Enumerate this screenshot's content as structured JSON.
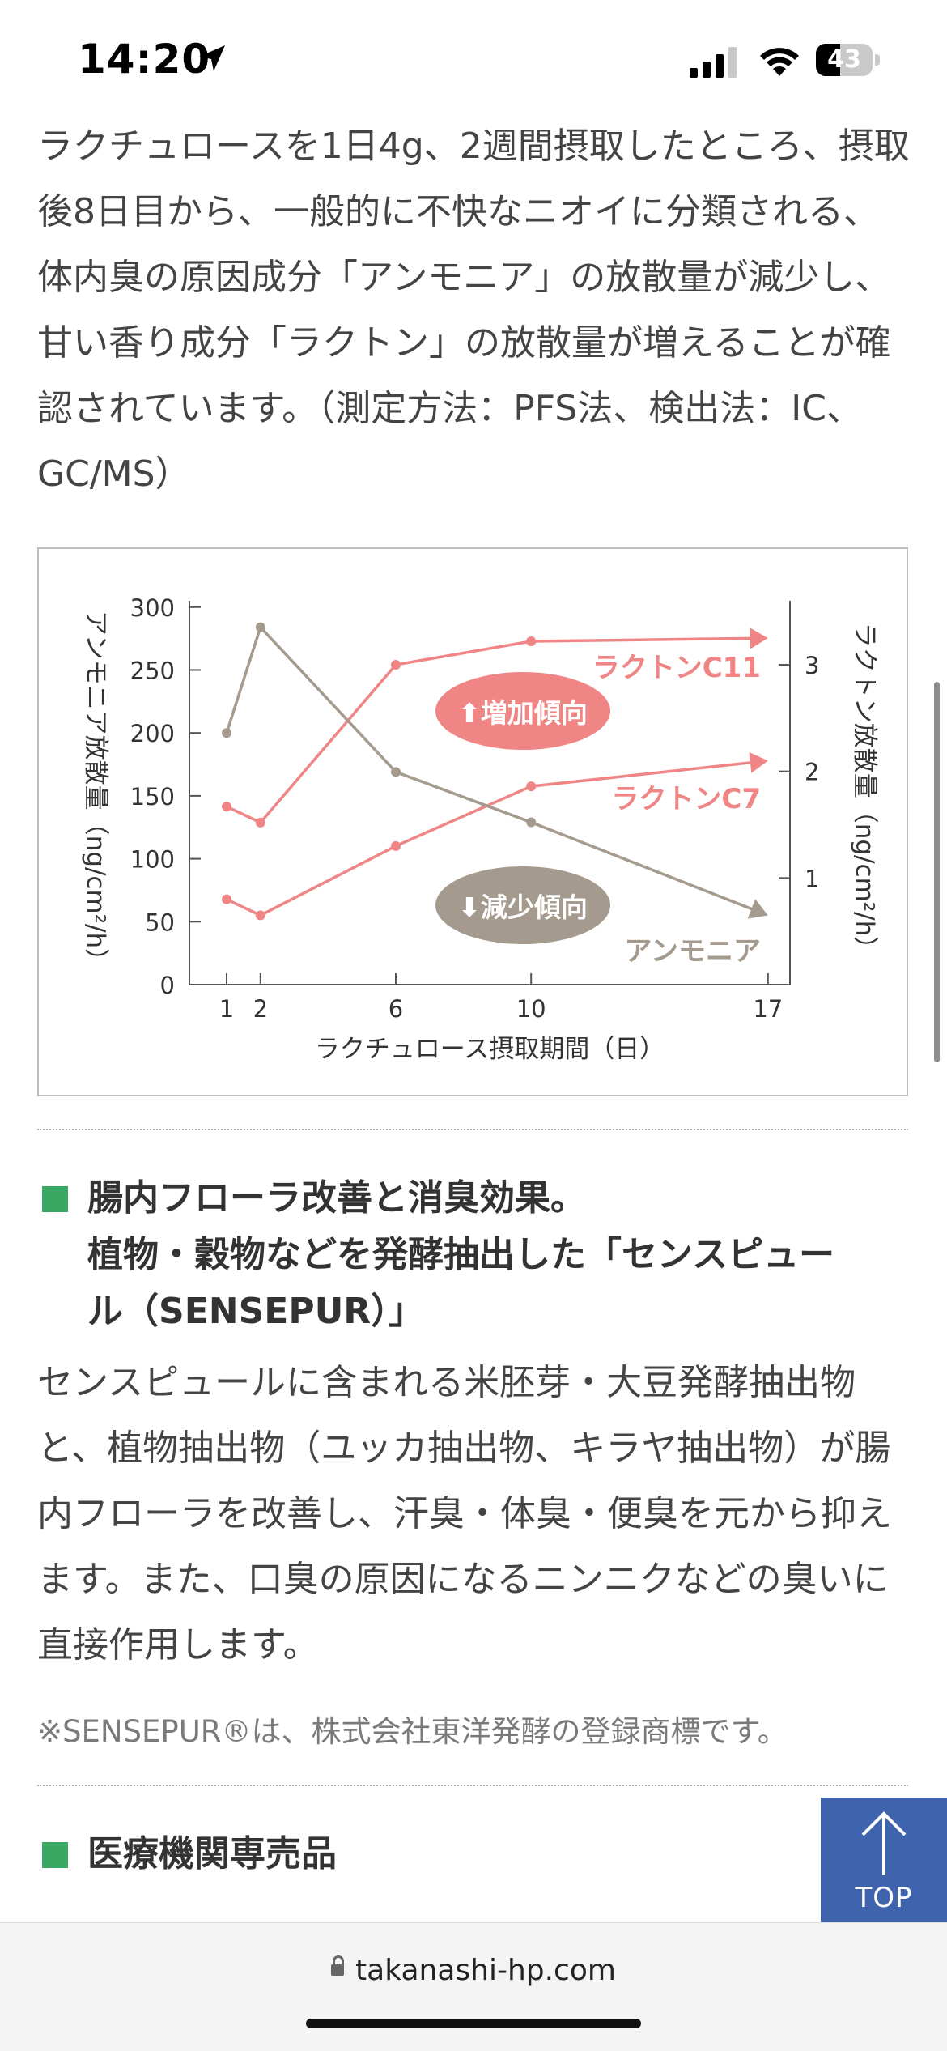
{
  "status_bar": {
    "time": "14:20",
    "battery": "43"
  },
  "intro_paragraph": "ラクチュロースを1日4g、2週間摂取したところ、摂取後8日目から、一般的に不快なニオイに分類される、体内臭の原因成分「アンモニア」の放散量が減少し、甘い香り成分「ラクトン」の放散量が増えることが確認されています。（測定方法：PFS法、検出法：IC、GC/MS）",
  "chart_data": {
    "type": "line",
    "xlabel": "ラクチュロース摂取期間（日）",
    "ylabel_left": "アンモニア放散量（ng/cm²/h）",
    "ylabel_right": "ラクトン放散量（ng/cm²/h）",
    "x_ticks": [
      "1",
      "2",
      "6",
      "10",
      "17"
    ],
    "y_left_ticks": [
      "0",
      "50",
      "100",
      "150",
      "200",
      "250",
      "300"
    ],
    "y_right_ticks": [
      "1",
      "2",
      "3"
    ],
    "xlim": [
      0,
      18
    ],
    "ylim_left": [
      0,
      305
    ],
    "ylim_right": [
      0,
      3.6
    ],
    "series": [
      {
        "name": "ラクトンC11",
        "axis": "right",
        "x": [
          1,
          2,
          6,
          10,
          17
        ],
        "values": [
          1.67,
          1.52,
          3.0,
          3.22,
          3.25
        ]
      },
      {
        "name": "ラクトンC7",
        "axis": "right",
        "x": [
          1,
          2,
          6,
          10,
          17
        ],
        "values": [
          0.8,
          0.65,
          1.3,
          1.86,
          2.1
        ]
      },
      {
        "name": "アンモニア",
        "axis": "left",
        "x": [
          1,
          2,
          6,
          10,
          17
        ],
        "values": [
          200,
          284,
          169,
          129,
          55
        ]
      }
    ],
    "annotations": {
      "increase": "⬆増加傾向",
      "decrease": "⬇減少傾向"
    },
    "colors": {
      "lactone": "#ef8585",
      "ammonia": "#a59a8e",
      "axis": "#555555"
    }
  },
  "section1": {
    "title_lines": [
      "腸内フローラ改善と消臭効果。",
      "植物・穀物などを発酵抽出した「センスピュー",
      "ル（SENSEPUR）」"
    ],
    "body": "センスピュールに含まれる米胚芽・大豆発酵抽出物と、植物抽出物（ユッカ抽出物、キラヤ抽出物）が腸内フローラを改善し、汗臭・体臭・便臭を元から抑えます。また、口臭の原因になるニンニクなどの臭いに直接作用します。",
    "note": "※SENSEPUR®は、株式会社東洋発酵の登録商標です。"
  },
  "section2": {
    "title": "医療機関専売品"
  },
  "top_button": {
    "label": "TOP"
  },
  "browser": {
    "url": "takanashi-hp.com"
  },
  "colors": {
    "accent_green": "#3aa862",
    "top_button": "#3f64ad"
  }
}
